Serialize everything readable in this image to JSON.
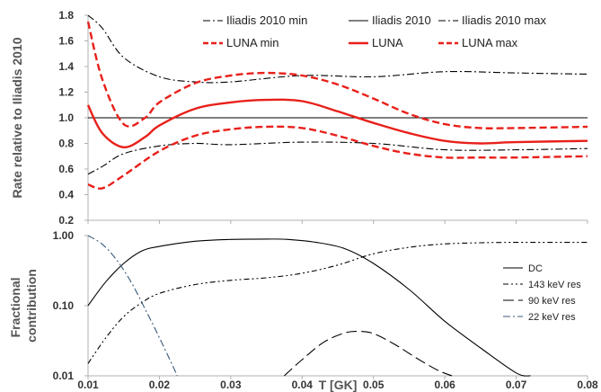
{
  "chart_data": [
    {
      "type": "line",
      "title": "",
      "xlabel": "",
      "ylabel": "Rate relative to Iliadis 2010",
      "xlim": [
        0.01,
        0.08
      ],
      "ylim": [
        0.2,
        1.8
      ],
      "yticks": [
        "0.2",
        "0.4",
        "0.6",
        "0.8",
        "1.0",
        "1.2",
        "1.4",
        "1.6",
        "1.8"
      ],
      "grid": false,
      "legend_position": "top",
      "series": [
        {
          "name": "Iliadis 2010 min",
          "color": "#000000",
          "style": "dash-dot",
          "x": [
            0.01,
            0.012,
            0.015,
            0.02,
            0.025,
            0.03,
            0.04,
            0.05,
            0.06,
            0.07,
            0.08
          ],
          "y": [
            0.56,
            0.62,
            0.72,
            0.78,
            0.8,
            0.79,
            0.81,
            0.8,
            0.75,
            0.75,
            0.76
          ]
        },
        {
          "name": "Iliadis 2010",
          "color": "#000000",
          "style": "solid",
          "x": [
            0.01,
            0.08
          ],
          "y": [
            1.0,
            1.0
          ]
        },
        {
          "name": "Iliadis 2010 max",
          "color": "#000000",
          "style": "dash-dot",
          "x": [
            0.01,
            0.012,
            0.015,
            0.02,
            0.025,
            0.03,
            0.04,
            0.05,
            0.06,
            0.07,
            0.08
          ],
          "y": [
            1.8,
            1.7,
            1.47,
            1.32,
            1.28,
            1.28,
            1.33,
            1.32,
            1.36,
            1.35,
            1.34
          ]
        },
        {
          "name": "LUNA min",
          "color": "#e8201a",
          "style": "dash",
          "x": [
            0.01,
            0.012,
            0.015,
            0.02,
            0.025,
            0.03,
            0.035,
            0.04,
            0.045,
            0.05,
            0.055,
            0.06,
            0.065,
            0.07,
            0.08
          ],
          "y": [
            0.48,
            0.45,
            0.55,
            0.74,
            0.86,
            0.91,
            0.93,
            0.92,
            0.86,
            0.78,
            0.72,
            0.69,
            0.69,
            0.69,
            0.7
          ]
        },
        {
          "name": "LUNA",
          "color": "#e8201a",
          "style": "solid",
          "x": [
            0.01,
            0.012,
            0.015,
            0.018,
            0.02,
            0.025,
            0.03,
            0.035,
            0.04,
            0.045,
            0.05,
            0.055,
            0.06,
            0.065,
            0.07,
            0.08
          ],
          "y": [
            1.1,
            0.88,
            0.77,
            0.85,
            0.94,
            1.07,
            1.12,
            1.14,
            1.13,
            1.05,
            0.96,
            0.88,
            0.82,
            0.8,
            0.81,
            0.82
          ]
        },
        {
          "name": "LUNA max",
          "color": "#e8201a",
          "style": "dash",
          "x": [
            0.01,
            0.012,
            0.015,
            0.018,
            0.02,
            0.025,
            0.03,
            0.035,
            0.04,
            0.045,
            0.05,
            0.055,
            0.06,
            0.065,
            0.07,
            0.08
          ],
          "y": [
            1.75,
            1.3,
            0.95,
            1.0,
            1.12,
            1.27,
            1.33,
            1.35,
            1.33,
            1.26,
            1.15,
            1.03,
            0.95,
            0.92,
            0.92,
            0.93
          ]
        }
      ]
    },
    {
      "type": "line",
      "title": "",
      "xlabel": "T [GK]",
      "ylabel": "Fractional contribution",
      "ylabel_lines": [
        "Fractional",
        "contribution"
      ],
      "xlim": [
        0.01,
        0.08
      ],
      "ylim": [
        0.01,
        1.0
      ],
      "yscale": "log",
      "xticks": [
        "0.01",
        "0.02",
        "0.03",
        "0.04",
        "0.05",
        "0.06",
        "0.07",
        "0.08"
      ],
      "yticks": [
        "0.01",
        "0.10",
        "1.00"
      ],
      "grid": false,
      "legend_position": "right",
      "series": [
        {
          "name": "DC",
          "color": "#000000",
          "style": "solid",
          "x": [
            0.01,
            0.0125,
            0.015,
            0.0175,
            0.02,
            0.025,
            0.03,
            0.035,
            0.038,
            0.042,
            0.046,
            0.05,
            0.055,
            0.06,
            0.065,
            0.07,
            0.072
          ],
          "y": [
            0.1,
            0.22,
            0.4,
            0.6,
            0.7,
            0.83,
            0.88,
            0.89,
            0.88,
            0.8,
            0.65,
            0.4,
            0.17,
            0.06,
            0.025,
            0.011,
            0.009
          ]
        },
        {
          "name": "143 keV res",
          "color": "#000000",
          "style": "dash-dot-dot",
          "x": [
            0.01,
            0.0125,
            0.015,
            0.0175,
            0.02,
            0.025,
            0.03,
            0.035,
            0.04,
            0.045,
            0.05,
            0.055,
            0.06,
            0.065,
            0.07,
            0.08
          ],
          "y": [
            0.015,
            0.035,
            0.07,
            0.11,
            0.15,
            0.2,
            0.23,
            0.25,
            0.29,
            0.38,
            0.55,
            0.68,
            0.76,
            0.79,
            0.8,
            0.8
          ]
        },
        {
          "name": "90 keV res",
          "color": "#000000",
          "style": "long-dash",
          "x": [
            0.0375,
            0.04,
            0.043,
            0.046,
            0.048,
            0.05,
            0.053,
            0.056,
            0.059,
            0.061
          ],
          "y": [
            0.01,
            0.017,
            0.03,
            0.041,
            0.043,
            0.04,
            0.028,
            0.018,
            0.012,
            0.01
          ]
        },
        {
          "name": "22 keV res",
          "color": "#3a5a7a",
          "style": "dash-dot",
          "x": [
            0.01,
            0.012,
            0.014,
            0.016,
            0.018,
            0.02,
            0.022,
            0.0225
          ],
          "y": [
            1.0,
            0.75,
            0.45,
            0.22,
            0.09,
            0.035,
            0.013,
            0.01
          ]
        }
      ]
    }
  ]
}
